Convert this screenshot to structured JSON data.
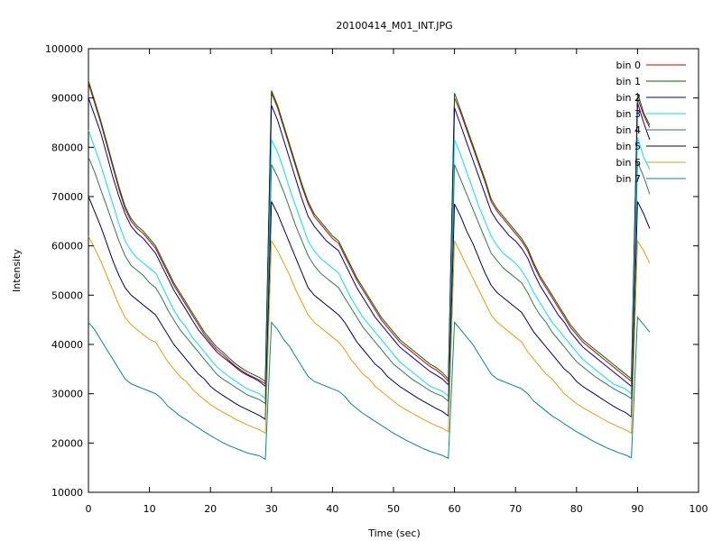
{
  "chart_data": {
    "type": "line",
    "title": "20100414_M01_INT.JPG",
    "xlabel": "Time (sec)",
    "ylabel": "Intensity",
    "xlim": [
      0,
      100
    ],
    "ylim": [
      10000,
      100000
    ],
    "xticks": [
      0,
      10,
      20,
      30,
      40,
      50,
      60,
      70,
      80,
      90,
      100
    ],
    "yticks": [
      10000,
      20000,
      30000,
      40000,
      50000,
      60000,
      70000,
      80000,
      90000,
      100000
    ],
    "grid": false,
    "legend_position": "top-right",
    "x": [
      0,
      1,
      2,
      3,
      4,
      5,
      6,
      7,
      8,
      9,
      10,
      11,
      12,
      13,
      14,
      15,
      16,
      17,
      18,
      19,
      20,
      21,
      22,
      23,
      24,
      25,
      26,
      27,
      28,
      29,
      30,
      31,
      32,
      33,
      34,
      35,
      36,
      37,
      38,
      39,
      40,
      41,
      42,
      43,
      44,
      45,
      46,
      47,
      48,
      49,
      50,
      51,
      52,
      53,
      54,
      55,
      56,
      57,
      58,
      59,
      60,
      61,
      62,
      63,
      64,
      65,
      66,
      67,
      68,
      69,
      70,
      71,
      72,
      73,
      74,
      75,
      76,
      77,
      78,
      79,
      80,
      81,
      82,
      83,
      84,
      85,
      86,
      87,
      88,
      89,
      90,
      91,
      92
    ],
    "series": [
      {
        "name": "bin 0",
        "color": "#cc0000",
        "values": [
          93000,
          89000,
          85000,
          80500,
          76000,
          71500,
          67500,
          65000,
          63500,
          62500,
          61000,
          59500,
          57000,
          54500,
          52000,
          50000,
          48000,
          46000,
          44000,
          42000,
          40500,
          39000,
          38000,
          36800,
          35700,
          34800,
          34000,
          33400,
          32800,
          32000,
          91000,
          88000,
          84000,
          80000,
          76000,
          72000,
          68500,
          66000,
          64500,
          63000,
          61500,
          60500,
          58000,
          55500,
          53000,
          51000,
          49000,
          47000,
          45000,
          43500,
          42000,
          40500,
          39500,
          38500,
          37500,
          36500,
          35500,
          34800,
          33800,
          32500,
          90000,
          87000,
          83500,
          80000,
          76500,
          73000,
          69000,
          67000,
          65500,
          64000,
          62500,
          61000,
          59000,
          56000,
          53500,
          51500,
          49500,
          47500,
          45500,
          43500,
          42000,
          40500,
          39500,
          38500,
          37500,
          36500,
          35500,
          34500,
          33500,
          32500,
          90000,
          86500,
          84000
        ]
      },
      {
        "name": "bin 1",
        "color": "#006600",
        "values": [
          93500,
          89500,
          85500,
          81000,
          76500,
          72000,
          68000,
          65500,
          64000,
          63000,
          61500,
          60000,
          57500,
          55000,
          52500,
          50500,
          48500,
          46500,
          44500,
          42500,
          41000,
          39500,
          38500,
          37300,
          36200,
          35300,
          34500,
          33900,
          33300,
          32500,
          91500,
          88500,
          84500,
          80500,
          76500,
          72500,
          69000,
          66500,
          65000,
          63500,
          62000,
          61000,
          58500,
          56000,
          53500,
          51500,
          49500,
          47500,
          45500,
          44000,
          42500,
          41000,
          40000,
          39000,
          38000,
          37000,
          36000,
          35300,
          34300,
          33000,
          91000,
          87500,
          84000,
          80500,
          77000,
          73500,
          69500,
          67500,
          66000,
          64500,
          63000,
          61500,
          59500,
          56500,
          54000,
          52000,
          50000,
          48000,
          46000,
          44000,
          42500,
          41000,
          40000,
          39000,
          38000,
          37000,
          36000,
          35000,
          34000,
          33000,
          91000,
          87000,
          84500
        ]
      },
      {
        "name": "bin 2",
        "color": "#000099",
        "values": [
          90000,
          86500,
          83000,
          78500,
          74000,
          70000,
          66500,
          64000,
          62500,
          61500,
          60000,
          58500,
          56000,
          53500,
          51000,
          49000,
          47000,
          45000,
          43000,
          41500,
          40000,
          38500,
          37500,
          36500,
          35500,
          34500,
          33800,
          33200,
          32500,
          31500,
          88500,
          85500,
          81500,
          77500,
          73500,
          69500,
          66000,
          64000,
          62500,
          61000,
          60000,
          59000,
          56500,
          54000,
          51500,
          49500,
          47500,
          45500,
          44000,
          42500,
          41000,
          39500,
          38500,
          37500,
          36500,
          35500,
          34500,
          33800,
          33000,
          31800,
          88000,
          84500,
          81000,
          77500,
          74000,
          70500,
          67000,
          65000,
          63500,
          62000,
          61000,
          59500,
          57500,
          54500,
          52000,
          50000,
          48000,
          46000,
          44500,
          42500,
          41000,
          39500,
          38500,
          37500,
          36500,
          35500,
          34500,
          33500,
          32500,
          31500,
          89000,
          85000,
          81500
        ]
      },
      {
        "name": "bin 3",
        "color": "#00e5e5",
        "values": [
          83500,
          80000,
          76500,
          72500,
          68500,
          64500,
          61000,
          59000,
          57500,
          56500,
          55500,
          54500,
          52000,
          49500,
          47000,
          45000,
          43500,
          41500,
          40000,
          38500,
          37000,
          35500,
          34500,
          33500,
          32700,
          31800,
          31000,
          30500,
          30000,
          29000,
          81500,
          79000,
          75500,
          71500,
          68000,
          64500,
          61000,
          59000,
          57500,
          56500,
          55500,
          54500,
          52000,
          49500,
          47500,
          45500,
          44000,
          42500,
          41000,
          39500,
          38000,
          36500,
          35500,
          34500,
          33500,
          32500,
          31500,
          31000,
          30500,
          29500,
          81500,
          78500,
          75000,
          71500,
          68000,
          65000,
          62000,
          60000,
          58500,
          57500,
          56500,
          55000,
          53000,
          50500,
          48500,
          46500,
          44500,
          43000,
          41500,
          40000,
          38500,
          37000,
          36000,
          35000,
          34000,
          33000,
          32000,
          31500,
          31000,
          30000,
          82000,
          78000,
          75500
        ]
      },
      {
        "name": "bin 4",
        "color": "#2e7d4f",
        "values": [
          78000,
          75000,
          71500,
          68000,
          64500,
          61000,
          58000,
          56000,
          55000,
          54000,
          52500,
          51500,
          49500,
          47000,
          45000,
          43000,
          41500,
          40000,
          38500,
          37000,
          35500,
          34000,
          33000,
          32200,
          31400,
          30600,
          29800,
          29300,
          28800,
          28000,
          76500,
          74000,
          71000,
          67500,
          64000,
          61000,
          58000,
          56000,
          54500,
          53500,
          52500,
          51500,
          49500,
          47500,
          45500,
          43500,
          42000,
          40500,
          39000,
          37500,
          36000,
          35000,
          34000,
          33000,
          32200,
          31400,
          30600,
          30000,
          29500,
          28500,
          76500,
          73500,
          70500,
          67500,
          64500,
          61500,
          58500,
          57000,
          55500,
          54500,
          53500,
          52500,
          50500,
          48000,
          46000,
          44500,
          42500,
          41000,
          39500,
          38000,
          36500,
          35500,
          34500,
          33500,
          32700,
          31900,
          31100,
          30400,
          29800,
          29000,
          77000,
          74000,
          70500
        ]
      },
      {
        "name": "bin 5",
        "color": "#000066",
        "values": [
          70000,
          67000,
          64000,
          60500,
          57000,
          54000,
          51500,
          50000,
          49000,
          48000,
          47000,
          46000,
          44000,
          42000,
          40000,
          38500,
          37000,
          35500,
          34000,
          33000,
          31500,
          30500,
          29700,
          28900,
          28100,
          27400,
          26800,
          26200,
          25600,
          24800,
          69000,
          66500,
          63500,
          60500,
          57500,
          54500,
          51500,
          50000,
          49000,
          48000,
          47000,
          46000,
          44500,
          42500,
          40500,
          39000,
          37500,
          36000,
          35000,
          33500,
          32500,
          31500,
          30700,
          29900,
          29100,
          28400,
          27700,
          27000,
          26400,
          25500,
          68500,
          66000,
          63000,
          60500,
          57500,
          54500,
          52000,
          50500,
          49500,
          48500,
          47500,
          46500,
          44500,
          42500,
          41000,
          39500,
          38000,
          36500,
          35000,
          34000,
          32500,
          31500,
          30700,
          29900,
          29100,
          28300,
          27500,
          26800,
          26200,
          25300,
          69000,
          66500,
          63500
        ]
      },
      {
        "name": "bin 6",
        "color": "#e5a000",
        "values": [
          62000,
          59500,
          57000,
          54000,
          51000,
          48000,
          45500,
          44000,
          43000,
          42000,
          41000,
          40500,
          38500,
          36500,
          35000,
          33500,
          32500,
          31000,
          29800,
          28800,
          27800,
          27000,
          26300,
          25600,
          24900,
          24300,
          23700,
          23200,
          22700,
          22000,
          61000,
          59000,
          56500,
          54000,
          51000,
          48500,
          46000,
          44500,
          43500,
          42500,
          41500,
          40500,
          39000,
          37000,
          35500,
          34000,
          33000,
          31500,
          30500,
          29500,
          28500,
          27500,
          26800,
          26100,
          25400,
          24700,
          24100,
          23500,
          23000,
          22300,
          61000,
          58500,
          56000,
          53500,
          51000,
          48500,
          46000,
          44500,
          43500,
          42500,
          41500,
          40500,
          38500,
          37000,
          35500,
          34000,
          33000,
          31500,
          30000,
          29000,
          28000,
          27200,
          26500,
          25800,
          25100,
          24400,
          23800,
          23200,
          22700,
          22000,
          61000,
          59000,
          56500
        ]
      },
      {
        "name": "bin 7",
        "color": "#008b8b",
        "values": [
          44500,
          43000,
          41000,
          39000,
          37000,
          35000,
          33000,
          32000,
          31500,
          31000,
          30500,
          30000,
          29000,
          27500,
          26500,
          25500,
          24700,
          23900,
          23100,
          22300,
          21500,
          20800,
          20100,
          19500,
          19000,
          18500,
          18000,
          17700,
          17400,
          16700,
          44500,
          43000,
          41000,
          39500,
          37500,
          35500,
          33500,
          32500,
          32000,
          31500,
          31000,
          30500,
          29500,
          28000,
          27000,
          26000,
          25200,
          24400,
          23600,
          22800,
          22000,
          21300,
          20600,
          20000,
          19400,
          18800,
          18300,
          17900,
          17500,
          16900,
          44500,
          43000,
          41500,
          40000,
          38000,
          36000,
          34000,
          33000,
          32500,
          32000,
          31500,
          31000,
          30000,
          28500,
          27500,
          26500,
          25500,
          24700,
          23900,
          23100,
          22300,
          21600,
          20900,
          20200,
          19600,
          19000,
          18500,
          18000,
          17600,
          17000,
          45500,
          44000,
          42500
        ]
      }
    ]
  }
}
